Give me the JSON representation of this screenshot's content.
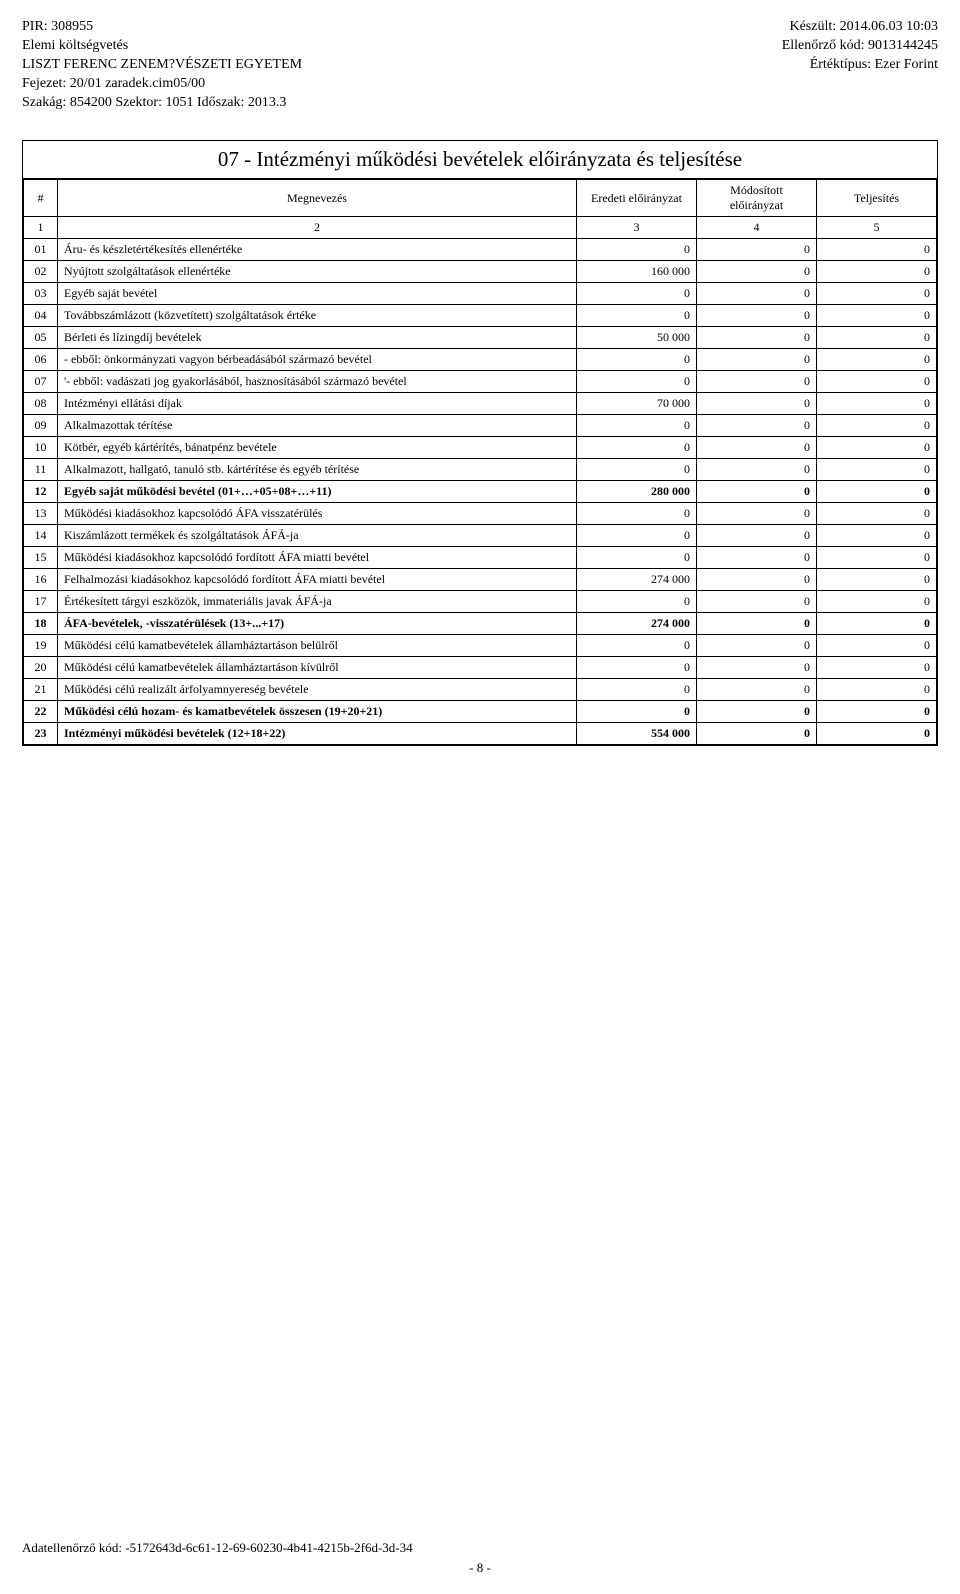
{
  "header": {
    "left": [
      "PIR: 308955",
      "Elemi költségvetés",
      "LISZT FERENC ZENEM?VÉSZETI EGYETEM",
      "Fejezet: 20/01 zaradek.cim05/00",
      "Szakág: 854200 Szektor: 1051 Időszak: 2013.3"
    ],
    "right": [
      "Készült: 2014.06.03 10:03",
      "Ellenőrző kód: 9013144245",
      "Értéktípus: Ezer Forint"
    ]
  },
  "table": {
    "title": "07 - Intézményi működési bevételek előirányzata és teljesítése",
    "columns": [
      "#",
      "Megnevezés",
      "Eredeti előirányzat",
      "Módosított előirányzat",
      "Teljesítés"
    ],
    "colnums": [
      "1",
      "2",
      "3",
      "4",
      "5"
    ],
    "rows": [
      {
        "n": "01",
        "name": "Áru- és készletértékesítés ellenértéke",
        "v": [
          "0",
          "0",
          "0"
        ],
        "bold": false
      },
      {
        "n": "02",
        "name": "Nyújtott szolgáltatások ellenértéke",
        "v": [
          "160 000",
          "0",
          "0"
        ],
        "bold": false
      },
      {
        "n": "03",
        "name": "Egyéb saját bevétel",
        "v": [
          "0",
          "0",
          "0"
        ],
        "bold": false
      },
      {
        "n": "04",
        "name": "Továbbszámlázott (közvetített) szolgáltatások értéke",
        "v": [
          "0",
          "0",
          "0"
        ],
        "bold": false
      },
      {
        "n": "05",
        "name": "Bérleti és lízingdíj bevételek",
        "v": [
          "50 000",
          "0",
          "0"
        ],
        "bold": false
      },
      {
        "n": "06",
        "name": "- ebből: önkormányzati vagyon bérbeadásából származó bevétel",
        "v": [
          "0",
          "0",
          "0"
        ],
        "bold": false
      },
      {
        "n": "07",
        "name": "'- ebből: vadászati jog gyakorlásából, hasznosításából származó bevétel",
        "v": [
          "0",
          "0",
          "0"
        ],
        "bold": false
      },
      {
        "n": "08",
        "name": "Intézményi ellátási díjak",
        "v": [
          "70 000",
          "0",
          "0"
        ],
        "bold": false
      },
      {
        "n": "09",
        "name": "Alkalmazottak térítése",
        "v": [
          "0",
          "0",
          "0"
        ],
        "bold": false
      },
      {
        "n": "10",
        "name": "Kötbér, egyéb kártérítés, bánatpénz bevétele",
        "v": [
          "0",
          "0",
          "0"
        ],
        "bold": false
      },
      {
        "n": "11",
        "name": "Alkalmazott, hallgató, tanuló stb. kártérítése és egyéb térítése",
        "v": [
          "0",
          "0",
          "0"
        ],
        "bold": false
      },
      {
        "n": "12",
        "name": "Egyéb saját működési bevétel (01+…+05+08+…+11)",
        "v": [
          "280 000",
          "0",
          "0"
        ],
        "bold": true
      },
      {
        "n": "13",
        "name": "Működési kiadásokhoz kapcsolódó ÁFA visszatérülés",
        "v": [
          "0",
          "0",
          "0"
        ],
        "bold": false
      },
      {
        "n": "14",
        "name": "Kiszámlázott termékek és szolgáltatások ÁFÁ-ja",
        "v": [
          "0",
          "0",
          "0"
        ],
        "bold": false
      },
      {
        "n": "15",
        "name": "Működési kiadásokhoz kapcsolódó fordított ÁFA miatti bevétel",
        "v": [
          "0",
          "0",
          "0"
        ],
        "bold": false
      },
      {
        "n": "16",
        "name": "Felhalmozási kiadásokhoz kapcsolódó fordított ÁFA miatti bevétel",
        "v": [
          "274 000",
          "0",
          "0"
        ],
        "bold": false
      },
      {
        "n": "17",
        "name": "Értékesített tárgyi eszközök, immateriális javak ÁFÁ-ja",
        "v": [
          "0",
          "0",
          "0"
        ],
        "bold": false
      },
      {
        "n": "18",
        "name": "ÁFA-bevételek, -visszatérülések (13+...+17)",
        "v": [
          "274 000",
          "0",
          "0"
        ],
        "bold": true
      },
      {
        "n": "19",
        "name": "Működési célú kamatbevételek államháztartáson belülről",
        "v": [
          "0",
          "0",
          "0"
        ],
        "bold": false
      },
      {
        "n": "20",
        "name": "Működési célú kamatbevételek államháztartáson kívülről",
        "v": [
          "0",
          "0",
          "0"
        ],
        "bold": false
      },
      {
        "n": "21",
        "name": "Működési célú realizált árfolyamnyereség bevétele",
        "v": [
          "0",
          "0",
          "0"
        ],
        "bold": false
      },
      {
        "n": "22",
        "name": "Működési célú hozam- és kamatbevételek összesen (19+20+21)",
        "v": [
          "0",
          "0",
          "0"
        ],
        "bold": true
      },
      {
        "n": "23",
        "name": "Intézményi működési bevételek (12+18+22)",
        "v": [
          "554 000",
          "0",
          "0"
        ],
        "bold": true
      }
    ]
  },
  "footer": {
    "check": "Adatellenőrző kód: -5172643d-6c61-12-69-60230-4b41-4215b-2f6d-3d-34",
    "page": "- 8 -"
  }
}
